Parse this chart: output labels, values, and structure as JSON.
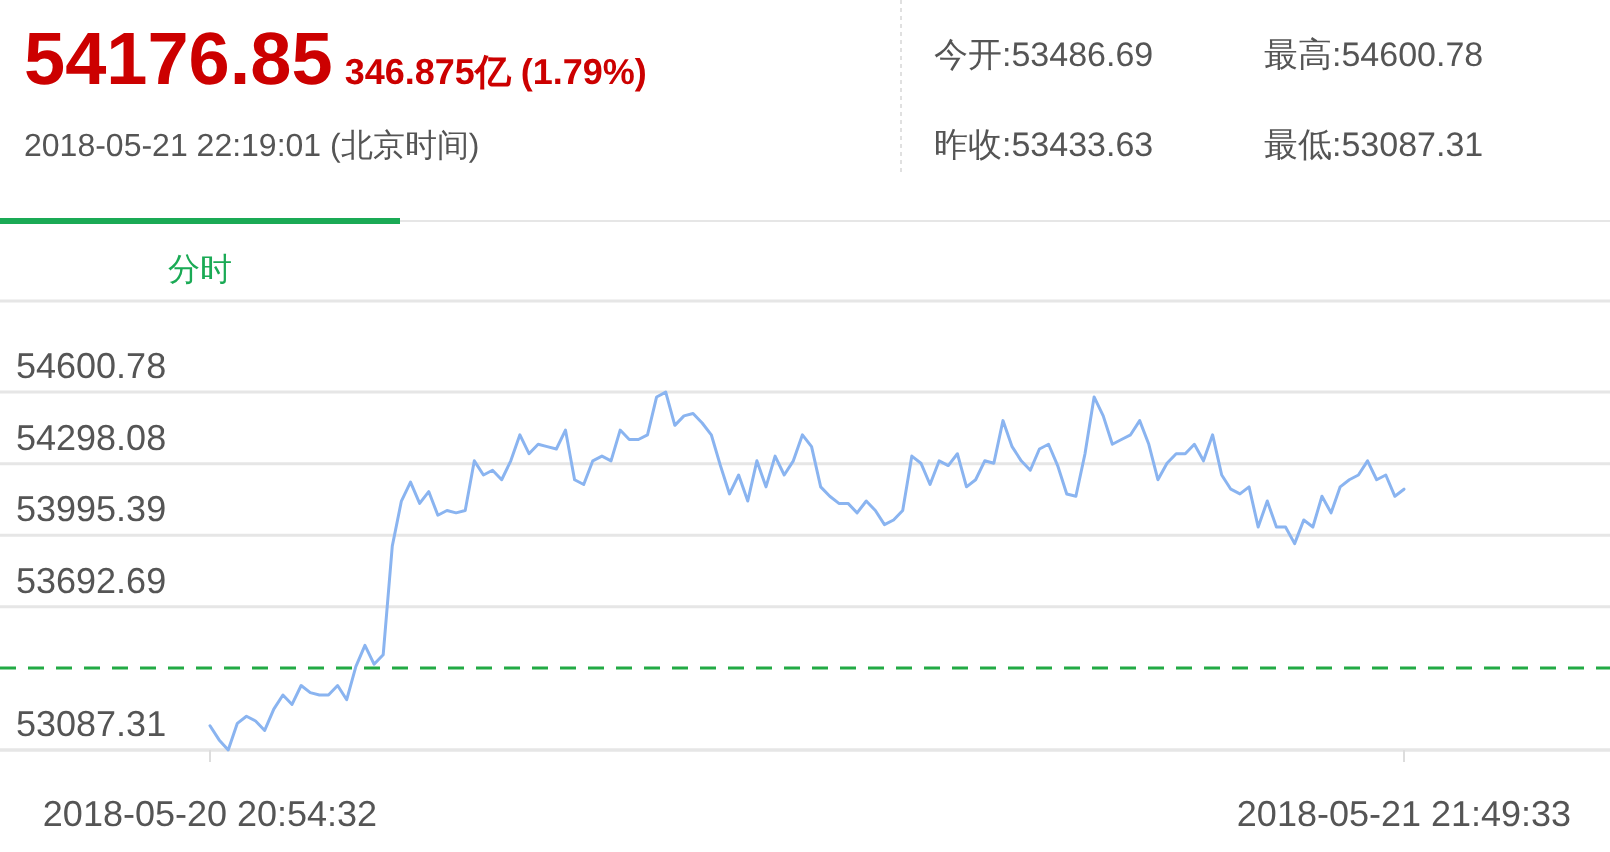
{
  "chart_data": {
    "type": "line",
    "title": "54176.85",
    "subtitle": "346.875亿 (1.79%)",
    "annotations": [
      "2018-05-21 22:19:01 (北京时间)",
      "今开:53486.69",
      "最高:54600.78",
      "昨收:53433.63",
      "最低:53087.31",
      "分时"
    ],
    "categories": [
      "2018-05-20 20:54:32",
      null,
      null,
      null,
      null,
      null,
      null,
      null,
      null,
      null,
      null,
      null,
      null,
      null,
      null,
      null,
      null,
      null,
      null,
      null,
      null,
      null,
      null,
      null,
      null,
      null,
      null,
      null,
      null,
      null,
      null,
      null,
      null,
      null,
      null,
      null,
      null,
      null,
      null,
      null,
      null,
      null,
      null,
      null,
      null,
      null,
      null,
      null,
      null,
      null,
      null,
      null,
      null,
      null,
      null,
      null,
      null,
      null,
      null,
      null,
      null,
      null,
      null,
      null,
      null,
      null,
      null,
      null,
      null,
      null,
      null,
      null,
      null,
      null,
      null,
      null,
      null,
      null,
      null,
      null,
      null,
      null,
      null,
      null,
      null,
      null,
      null,
      null,
      null,
      null,
      null,
      null,
      null,
      null,
      null,
      null,
      null,
      null,
      null,
      null,
      null,
      null,
      null,
      null,
      null,
      null,
      null,
      null,
      null,
      null,
      null,
      null,
      null,
      null,
      null,
      null,
      null,
      null,
      null,
      null,
      null,
      null,
      null,
      null,
      null,
      null,
      null,
      null,
      null,
      null,
      null,
      "2018-05-21 21:49:33"
    ],
    "series": [
      {
        "color": "#8ab4f0",
        "values": [
          53190,
          53130,
          53087.31,
          53200,
          53230,
          53210,
          53170,
          53260,
          53320,
          53280,
          53360,
          53330,
          53320,
          53320,
          53360,
          53300,
          53440,
          53530,
          53450,
          53490,
          53950,
          54140,
          54220,
          54130,
          54180,
          54080,
          54100,
          54090,
          54100,
          54310,
          54250,
          54270,
          54230,
          54310,
          54420,
          54340,
          54380,
          54370,
          54360,
          54440,
          54230,
          54210,
          54310,
          54330,
          54310,
          54440,
          54400,
          54400,
          54420,
          54580,
          54600.78,
          54460,
          54500,
          54510,
          54470,
          54420,
          54290,
          54170,
          54250,
          54140,
          54310,
          54200,
          54330,
          54250,
          54310,
          54420,
          54370,
          54200,
          54160,
          54130,
          54130,
          54090,
          54140,
          54100,
          54040,
          54060,
          54100,
          54330,
          54300,
          54210,
          54310,
          54290,
          54340,
          54200,
          54230,
          54310,
          54300,
          54480,
          54370,
          54310,
          54270,
          54360,
          54380,
          54290,
          54170,
          54160,
          54340,
          54580,
          54500,
          54380,
          54400,
          54420,
          54480,
          54380,
          54230,
          54300,
          54340,
          54340,
          54380,
          54310,
          54420,
          54250,
          54190,
          54170,
          54200,
          54030,
          54140,
          54030,
          54030,
          53960,
          54060,
          54030,
          54160,
          54090,
          54200,
          54230,
          54250,
          54310,
          54230,
          54250,
          54160,
          54190
        ]
      }
    ],
    "ylim": [
      53087.31,
      54990
    ],
    "yticks": [
      53087.31,
      53692.69,
      53995.39,
      54298.08,
      54600.78
    ],
    "ref_lines": [
      {
        "axis": "y",
        "value": 53433.63,
        "color": "#22aa44",
        "line_style": "dashed"
      }
    ],
    "grid": "y"
  }
}
